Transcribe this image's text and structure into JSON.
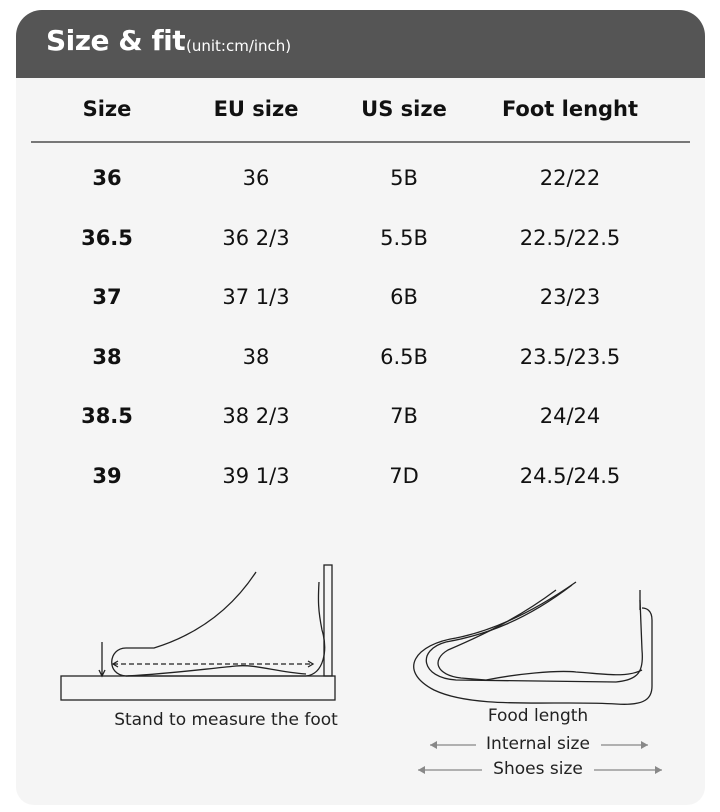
{
  "header": {
    "title": "Size & fit",
    "unit": "(unit:cm/inch)"
  },
  "table": {
    "columns": [
      "Size",
      "EU size",
      "US size",
      "Foot lenght"
    ],
    "rows": [
      [
        "36",
        "36",
        "5B",
        "22/22"
      ],
      [
        "36.5",
        "36 2/3",
        "5.5B",
        "22.5/22.5"
      ],
      [
        "37",
        "37 1/3",
        "6B",
        "23/23"
      ],
      [
        "38",
        "38",
        "6.5B",
        "23.5/23.5"
      ],
      [
        "38.5",
        "38 2/3",
        "7B",
        "24/24"
      ],
      [
        "39",
        "39 1/3",
        "7D",
        "24.5/24.5"
      ]
    ]
  },
  "diagram": {
    "left_caption": "Stand to measure the foot",
    "right_caption": "Food length",
    "internal_size": "Internal size",
    "shoes_size": "Shoes size"
  },
  "colors": {
    "header_bg": "#555555",
    "card_bg": "#f5f5f5",
    "arrow": "#888888"
  }
}
